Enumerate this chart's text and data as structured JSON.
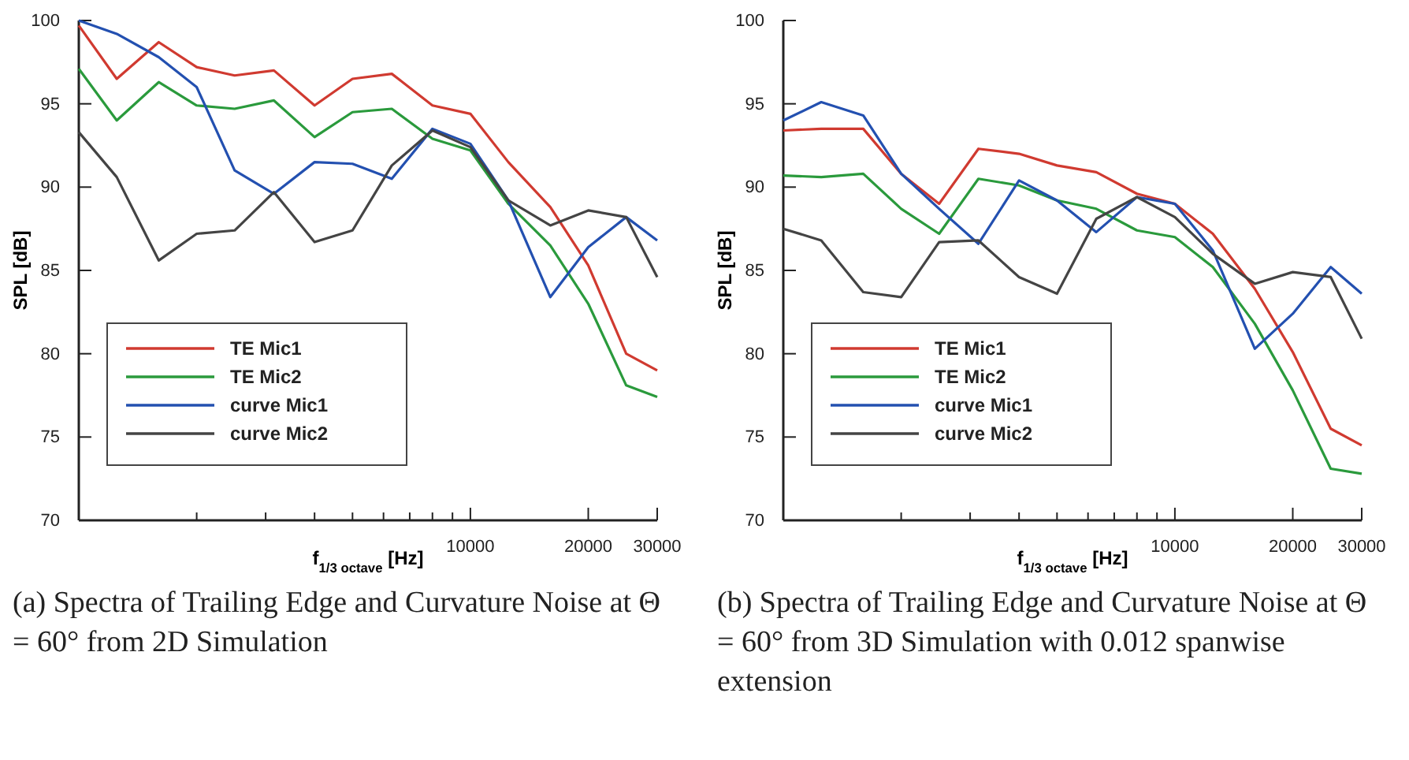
{
  "chart_data": [
    {
      "type": "line",
      "xlabel": "f$_{1/3 octave}$ [Hz]",
      "ylabel": "SPL [dB]",
      "log": "x",
      "legend": "bottom left",
      "grid": false,
      "line_style": "solid",
      "marker": "none",
      "x": [
        1000,
        1250,
        1600,
        2000,
        2500,
        3150,
        4000,
        5000,
        6300,
        8000,
        10000,
        12500,
        16000,
        20000,
        25000,
        30000
      ],
      "xlim": [
        1000,
        30000
      ],
      "xticks": [
        {
          "value": 2000,
          "label": null
        },
        {
          "value": 3000,
          "label": null
        },
        {
          "value": 4000,
          "label": null
        },
        {
          "value": 5000,
          "label": null
        },
        {
          "value": 6000,
          "label": null
        },
        {
          "value": 7000,
          "label": null
        },
        {
          "value": 8000,
          "label": null
        },
        {
          "value": 9000,
          "label": null
        },
        10000,
        20000,
        30000
      ],
      "ylim": [
        70,
        100
      ],
      "yticks": [
        70,
        75,
        80,
        85,
        90,
        95,
        100
      ],
      "series": [
        {
          "name": "TE Mic1",
          "color": "#d03a30",
          "values": [
            99.7,
            96.5,
            98.7,
            97.2,
            96.7,
            97.0,
            94.9,
            96.5,
            96.8,
            94.9,
            94.4,
            91.5,
            88.8,
            85.3,
            80.0,
            79.0
          ]
        },
        {
          "name": "TE Mic2",
          "color": "#2a9a3c",
          "values": [
            97.1,
            94.0,
            96.3,
            94.9,
            94.7,
            95.2,
            93.0,
            94.5,
            94.7,
            92.9,
            92.2,
            89.0,
            86.5,
            83.0,
            78.1,
            77.4
          ]
        },
        {
          "name": "curve Mic1",
          "color": "#2350b0",
          "values": [
            100.0,
            99.2,
            97.8,
            96.0,
            91.0,
            89.6,
            91.5,
            91.4,
            90.5,
            93.5,
            92.6,
            89.2,
            83.4,
            86.4,
            88.2,
            86.8
          ]
        },
        {
          "name": "curve Mic2",
          "color": "#444444",
          "values": [
            93.3,
            90.6,
            85.6,
            87.2,
            87.4,
            89.7,
            86.7,
            87.4,
            91.3,
            93.4,
            92.4,
            89.2,
            87.7,
            88.6,
            88.2,
            84.6
          ]
        }
      ],
      "annotations": [
        "(a) Spectra of Trailing Edge and Curvature Noise at Θ = 60° from 2D Simulation"
      ]
    },
    {
      "type": "line",
      "xlabel": "f$_{1/3 octave}$ [Hz]",
      "ylabel": "SPL [dB]",
      "log": "x",
      "legend": "bottom left",
      "grid": false,
      "line_style": "solid",
      "marker": "none",
      "x": [
        1000,
        1250,
        1600,
        2000,
        2500,
        3150,
        4000,
        5000,
        6300,
        8000,
        10000,
        12500,
        16000,
        20000,
        25000,
        30000
      ],
      "xlim": [
        1000,
        30000
      ],
      "xticks": [
        {
          "value": 2000,
          "label": null
        },
        {
          "value": 3000,
          "label": null
        },
        {
          "value": 4000,
          "label": null
        },
        {
          "value": 5000,
          "label": null
        },
        {
          "value": 6000,
          "label": null
        },
        {
          "value": 7000,
          "label": null
        },
        {
          "value": 8000,
          "label": null
        },
        {
          "value": 9000,
          "label": null
        },
        10000,
        20000,
        30000
      ],
      "ylim": [
        70,
        100
      ],
      "yticks": [
        70,
        75,
        80,
        85,
        90,
        95,
        100
      ],
      "series": [
        {
          "name": "TE Mic1",
          "color": "#d03a30",
          "values": [
            93.4,
            93.5,
            93.5,
            90.8,
            89.0,
            92.3,
            92.0,
            91.3,
            90.9,
            89.6,
            89.0,
            87.2,
            83.9,
            80.1,
            75.5,
            74.5
          ]
        },
        {
          "name": "TE Mic2",
          "color": "#2a9a3c",
          "values": [
            90.7,
            90.6,
            90.8,
            88.7,
            87.2,
            90.5,
            90.1,
            89.2,
            88.7,
            87.4,
            87.0,
            85.2,
            81.8,
            77.8,
            73.1,
            72.8
          ]
        },
        {
          "name": "curve Mic1",
          "color": "#2350b0",
          "values": [
            94.0,
            95.1,
            94.3,
            90.8,
            88.7,
            86.6,
            90.4,
            89.2,
            87.3,
            89.4,
            89.0,
            86.2,
            80.3,
            82.4,
            85.2,
            83.6
          ]
        },
        {
          "name": "curve Mic2",
          "color": "#444444",
          "values": [
            87.5,
            86.8,
            83.7,
            83.4,
            86.7,
            86.8,
            84.6,
            83.6,
            88.1,
            89.4,
            88.2,
            86.0,
            84.2,
            84.9,
            84.6,
            80.9
          ]
        }
      ],
      "annotations": [
        "(b) Spectra of Trailing Edge and Curvature Noise at Θ = 60° from 3D Simulation with 0.012 spanwise extension"
      ]
    }
  ]
}
